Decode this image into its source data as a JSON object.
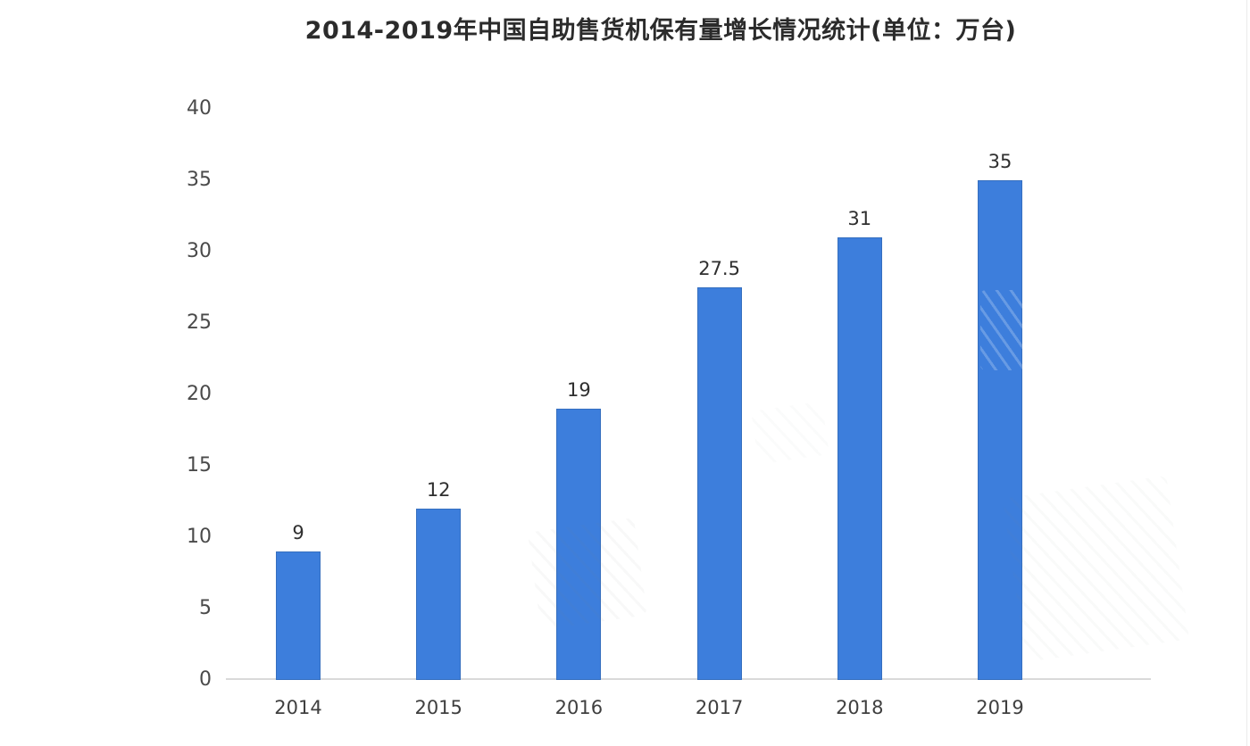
{
  "chart_data": {
    "type": "bar",
    "title": "2014-2019年中国自助售货机保有量增长情况统计(单位：万台)",
    "categories": [
      "2014",
      "2015",
      "2016",
      "2017",
      "2018",
      "2019"
    ],
    "values": [
      9,
      12,
      19,
      27.5,
      31,
      35
    ],
    "value_labels": [
      "9",
      "12",
      "19",
      "27.5",
      "31",
      "35"
    ],
    "yticks": [
      0,
      5,
      10,
      15,
      20,
      25,
      30,
      35,
      40
    ],
    "ylim": [
      0,
      40
    ],
    "xlabel": "",
    "ylabel": "",
    "unit_label": "万台",
    "grid": "off",
    "legend": "none",
    "bar_color": "#3d7edc",
    "axis_line_color": "#d9d9d9",
    "title_color": "#2b2b2b",
    "tick_label_color": "#4a4a4a",
    "value_label_color": "#2f2f2f"
  }
}
